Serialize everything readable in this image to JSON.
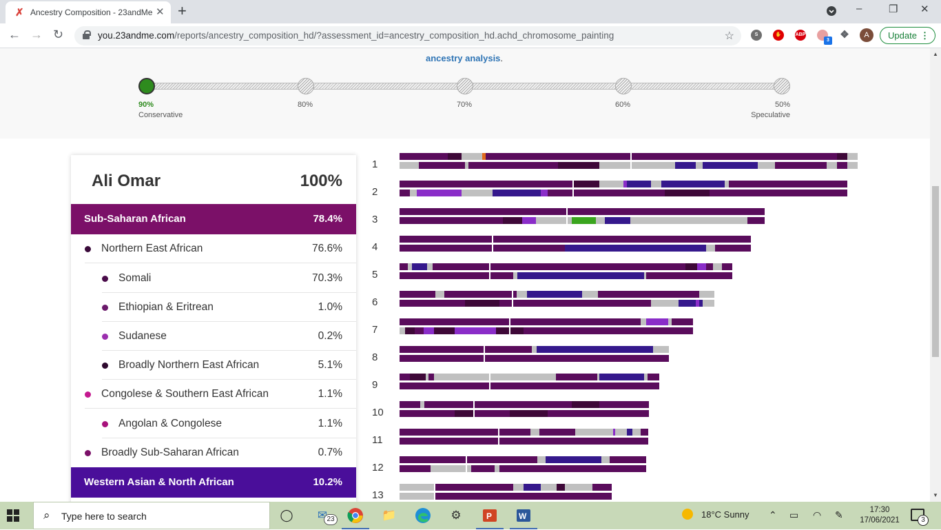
{
  "browser": {
    "tab_title": "Ancestry Composition - 23andMe",
    "new_tab": "+",
    "url_host": "you.23andme.com",
    "url_path": "/reports/ancestry_composition_hd/?assessment_id=ancestry_composition_hd.achd_chromosome_painting",
    "avatar_letter": "A",
    "update_label": "Update",
    "extensions": [
      "skype-icon",
      "adblock-stop-icon",
      "abp-icon",
      "extension-badge-icon",
      "puzzle-icon"
    ],
    "extension_badge_count": "3",
    "abp_label": "ABP"
  },
  "header": {
    "link_text": "ancestry analysis",
    "link_suffix": "."
  },
  "confidence_slider": {
    "selected_value": "90%",
    "stops": [
      {
        "value": "90%",
        "caption": "Conservative",
        "active": true
      },
      {
        "value": "80%",
        "caption": "",
        "active": false
      },
      {
        "value": "70%",
        "caption": "",
        "active": false
      },
      {
        "value": "60%",
        "caption": "",
        "active": false
      },
      {
        "value": "50%",
        "caption": "Speculative",
        "active": false
      }
    ]
  },
  "ancestry": {
    "name": "Ali Omar",
    "total": "100%",
    "regions": [
      {
        "label": "Sub-Saharan African",
        "value": "78.4%",
        "color": "#7b1068",
        "items": [
          {
            "label": "Northern East African",
            "value": "76.6%",
            "color": "#3a0a3a",
            "level": 1
          },
          {
            "label": "Somali",
            "value": "70.3%",
            "color": "#4a0c4a",
            "level": 2
          },
          {
            "label": "Ethiopian & Eritrean",
            "value": "1.0%",
            "color": "#6b1a6b",
            "level": 2
          },
          {
            "label": "Sudanese",
            "value": "0.2%",
            "color": "#9b2fae",
            "level": 2
          },
          {
            "label": "Broadly Northern East African",
            "value": "5.1%",
            "color": "#2e0a2e",
            "level": 2
          },
          {
            "label": "Congolese & Southern East African",
            "value": "1.1%",
            "color": "#c4198f",
            "level": 1
          },
          {
            "label": "Angolan & Congolese",
            "value": "1.1%",
            "color": "#a8127c",
            "level": 2
          },
          {
            "label": "Broadly Sub-Saharan African",
            "value": "0.7%",
            "color": "#7b1068",
            "level": 1
          }
        ]
      },
      {
        "label": "Western Asian & North African",
        "value": "10.2%",
        "color": "#4a0e9a",
        "items": []
      }
    ]
  },
  "chromosomes": [
    {
      "label": "1"
    },
    {
      "label": "2"
    },
    {
      "label": "3"
    },
    {
      "label": "4"
    },
    {
      "label": "5"
    },
    {
      "label": "6"
    },
    {
      "label": "7"
    },
    {
      "label": "8"
    },
    {
      "label": "9"
    },
    {
      "label": "10"
    },
    {
      "label": "11"
    },
    {
      "label": "12"
    },
    {
      "label": "13"
    }
  ],
  "colors": {
    "somali": "#5a0c5c",
    "broadly_nea": "#3e0838",
    "western_asian": "#35188c",
    "sudanese": "#8a2dc8",
    "unassigned": "#c0c0c0",
    "other_orange": "#e06a1c",
    "green_region": "#3aa51e"
  },
  "taskbar": {
    "search_placeholder": "Type here to search",
    "mail_badge": "23",
    "weather": "18°C  Sunny",
    "time": "17:30",
    "date": "17/06/2021",
    "notification_count": "3",
    "apps": [
      "task-view-icon",
      "mail-icon",
      "chrome-icon",
      "file-explorer-icon",
      "edge-icon",
      "settings-icon",
      "powerpoint-icon",
      "word-icon"
    ]
  }
}
